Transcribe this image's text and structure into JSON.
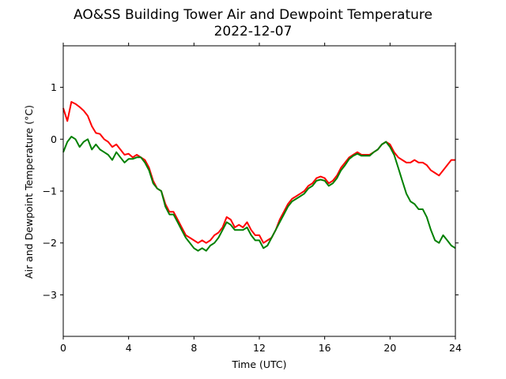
{
  "chart_data": {
    "type": "line",
    "title": "AO&SS Building Tower Air and Dewpoint Temperature",
    "subtitle": "2022-12-07",
    "xlabel": "Time (UTC)",
    "ylabel": "Air and Dewpoint Temperature (°C)",
    "xlim": [
      0,
      24
    ],
    "ylim": [
      -3.8,
      1.8
    ],
    "xticks": [
      0,
      4,
      8,
      12,
      16,
      20,
      24
    ],
    "xtick_labels": [
      "0",
      "4",
      "8",
      "12",
      "16",
      "20",
      "24"
    ],
    "yticks": [
      1,
      0,
      -1,
      -2,
      -3
    ],
    "ytick_labels": [
      "1",
      "0",
      "−1",
      "−2",
      "−3"
    ],
    "grid": false,
    "legend": "none",
    "x": [
      0,
      0.25,
      0.5,
      0.75,
      1,
      1.25,
      1.5,
      1.75,
      2,
      2.25,
      2.5,
      2.75,
      3,
      3.25,
      3.5,
      3.75,
      4,
      4.25,
      4.5,
      4.75,
      5,
      5.25,
      5.5,
      5.75,
      6,
      6.25,
      6.5,
      6.75,
      7,
      7.25,
      7.5,
      7.75,
      8,
      8.25,
      8.5,
      8.75,
      9,
      9.25,
      9.5,
      9.75,
      10,
      10.25,
      10.5,
      10.75,
      11,
      11.25,
      11.5,
      11.75,
      12,
      12.25,
      12.5,
      12.75,
      13,
      13.25,
      13.5,
      13.75,
      14,
      14.25,
      14.5,
      14.75,
      15,
      15.25,
      15.5,
      15.75,
      16,
      16.25,
      16.5,
      16.75,
      17,
      17.25,
      17.5,
      17.75,
      18,
      18.25,
      18.5,
      18.75,
      19,
      19.25,
      19.5,
      19.75,
      20,
      20.25,
      20.5,
      20.75,
      21,
      21.25,
      21.5,
      21.75,
      22,
      22.25,
      22.5,
      22.75,
      23,
      23.25,
      23.5,
      23.75,
      24
    ],
    "series": [
      {
        "color": "#ff0000",
        "values": [
          0.6,
          0.35,
          0.72,
          0.68,
          0.62,
          0.55,
          0.45,
          0.25,
          0.12,
          0.1,
          0.0,
          -0.05,
          -0.15,
          -0.1,
          -0.2,
          -0.3,
          -0.28,
          -0.35,
          -0.3,
          -0.35,
          -0.4,
          -0.55,
          -0.8,
          -0.95,
          -1.0,
          -1.25,
          -1.4,
          -1.4,
          -1.55,
          -1.7,
          -1.85,
          -1.9,
          -1.95,
          -2.0,
          -1.95,
          -2.0,
          -1.95,
          -1.85,
          -1.8,
          -1.7,
          -1.5,
          -1.55,
          -1.7,
          -1.65,
          -1.7,
          -1.6,
          -1.75,
          -1.85,
          -1.85,
          -2.0,
          -1.95,
          -1.9,
          -1.75,
          -1.55,
          -1.4,
          -1.25,
          -1.15,
          -1.1,
          -1.05,
          -1.0,
          -0.9,
          -0.85,
          -0.75,
          -0.72,
          -0.75,
          -0.85,
          -0.8,
          -0.7,
          -0.55,
          -0.45,
          -0.35,
          -0.3,
          -0.25,
          -0.3,
          -0.3,
          -0.3,
          -0.25,
          -0.2,
          -0.1,
          -0.05,
          -0.1,
          -0.25,
          -0.35,
          -0.4,
          -0.45,
          -0.45,
          -0.4,
          -0.45,
          -0.45,
          -0.5,
          -0.6,
          -0.65,
          -0.7,
          -0.6,
          -0.5,
          -0.4,
          -0.4
        ]
      },
      {
        "color": "#008000",
        "values": [
          -0.25,
          -0.05,
          0.05,
          0.0,
          -0.15,
          -0.05,
          0.0,
          -0.2,
          -0.1,
          -0.2,
          -0.25,
          -0.3,
          -0.4,
          -0.25,
          -0.35,
          -0.45,
          -0.38,
          -0.38,
          -0.35,
          -0.35,
          -0.45,
          -0.6,
          -0.85,
          -0.95,
          -1.0,
          -1.3,
          -1.45,
          -1.45,
          -1.6,
          -1.75,
          -1.9,
          -2.0,
          -2.1,
          -2.15,
          -2.1,
          -2.15,
          -2.05,
          -2.0,
          -1.9,
          -1.75,
          -1.6,
          -1.65,
          -1.75,
          -1.75,
          -1.75,
          -1.7,
          -1.85,
          -1.95,
          -1.95,
          -2.1,
          -2.05,
          -1.9,
          -1.75,
          -1.6,
          -1.45,
          -1.3,
          -1.2,
          -1.15,
          -1.1,
          -1.05,
          -0.95,
          -0.9,
          -0.8,
          -0.78,
          -0.8,
          -0.9,
          -0.85,
          -0.75,
          -0.6,
          -0.5,
          -0.38,
          -0.32,
          -0.28,
          -0.32,
          -0.32,
          -0.32,
          -0.25,
          -0.2,
          -0.1,
          -0.05,
          -0.15,
          -0.3,
          -0.55,
          -0.8,
          -1.05,
          -1.2,
          -1.25,
          -1.35,
          -1.35,
          -1.5,
          -1.75,
          -1.95,
          -2.0,
          -1.85,
          -1.95,
          -2.05,
          -2.1
        ]
      }
    ]
  }
}
